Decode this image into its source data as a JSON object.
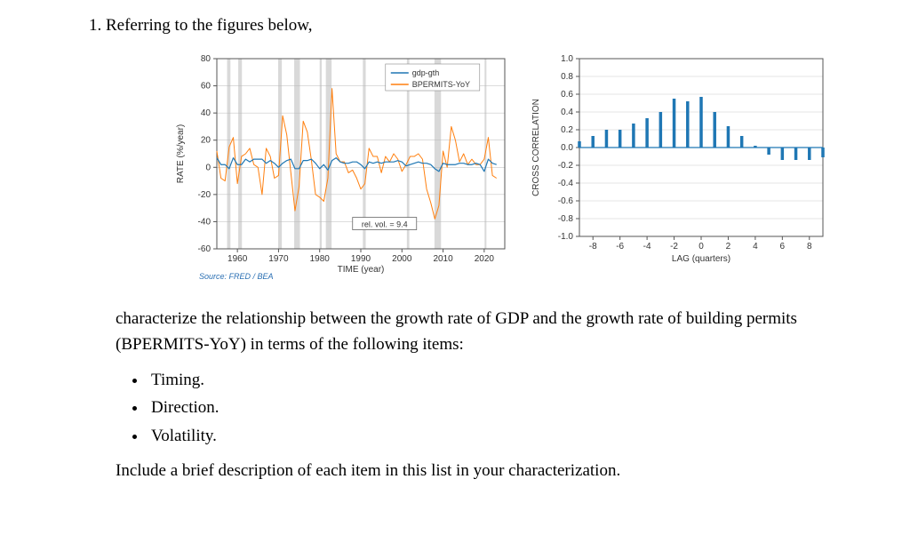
{
  "question_line": "1. Referring to the figures below,",
  "para1": "characterize the relationship between the growth rate of GDP and the growth rate of building permits (BPERMITS-YoY) in terms of the following items:",
  "bullets": [
    "Timing.",
    "Direction.",
    "Volatility."
  ],
  "para2": "Include a brief description of each item in this list in your characterization.",
  "left": {
    "title": "",
    "ylabel": "RATE (%/year)",
    "xlabel": "TIME (year)",
    "source": "Source: FRED / BEA",
    "annot": "rel. vol. = 9.4",
    "legend": [
      "gdp-gth",
      "BPERMITS-YoY"
    ],
    "legend_colors": [
      "#1f77b4",
      "#ff7f0e"
    ],
    "ylim": [
      -60,
      80
    ],
    "yticks": [
      -60,
      -40,
      -20,
      0,
      20,
      40,
      60,
      80
    ],
    "xlim": [
      1955,
      2025
    ],
    "xticks": [
      1960,
      1970,
      1980,
      1990,
      2000,
      2010,
      2020
    ],
    "recessions": [
      [
        1957.5,
        1958.3
      ],
      [
        1960.2,
        1961.1
      ],
      [
        1969.9,
        1970.8
      ],
      [
        1973.8,
        1975.2
      ],
      [
        1980.0,
        1980.5
      ],
      [
        1981.5,
        1982.9
      ],
      [
        1990.5,
        1991.2
      ],
      [
        2001.2,
        2001.8
      ],
      [
        2007.9,
        2009.5
      ],
      [
        2020.1,
        2020.4
      ]
    ],
    "gdp": [
      [
        1955,
        7
      ],
      [
        1956,
        2
      ],
      [
        1957,
        2
      ],
      [
        1958,
        -1
      ],
      [
        1959,
        7
      ],
      [
        1960,
        2
      ],
      [
        1961,
        2
      ],
      [
        1962,
        6
      ],
      [
        1963,
        4
      ],
      [
        1964,
        6
      ],
      [
        1965,
        6
      ],
      [
        1966,
        6
      ],
      [
        1967,
        3
      ],
      [
        1968,
        5
      ],
      [
        1969,
        3
      ],
      [
        1970,
        0
      ],
      [
        1971,
        3
      ],
      [
        1972,
        5
      ],
      [
        1973,
        6
      ],
      [
        1974,
        -1
      ],
      [
        1975,
        -1
      ],
      [
        1976,
        5
      ],
      [
        1977,
        5
      ],
      [
        1978,
        6
      ],
      [
        1979,
        3
      ],
      [
        1980,
        -1
      ],
      [
        1981,
        2
      ],
      [
        1982,
        -2
      ],
      [
        1983,
        5
      ],
      [
        1984,
        7
      ],
      [
        1985,
        4
      ],
      [
        1986,
        3
      ],
      [
        1987,
        3
      ],
      [
        1988,
        4
      ],
      [
        1989,
        4
      ],
      [
        1990,
        2
      ],
      [
        1991,
        -1
      ],
      [
        1992,
        4
      ],
      [
        1993,
        3
      ],
      [
        1994,
        4
      ],
      [
        1995,
        3
      ],
      [
        1996,
        4
      ],
      [
        1997,
        4
      ],
      [
        1998,
        4
      ],
      [
        1999,
        5
      ],
      [
        2000,
        4
      ],
      [
        2001,
        1
      ],
      [
        2002,
        2
      ],
      [
        2003,
        3
      ],
      [
        2004,
        4
      ],
      [
        2005,
        3
      ],
      [
        2006,
        3
      ],
      [
        2007,
        2
      ],
      [
        2008,
        -1
      ],
      [
        2009,
        -3
      ],
      [
        2010,
        3
      ],
      [
        2011,
        2
      ],
      [
        2012,
        2
      ],
      [
        2013,
        2
      ],
      [
        2014,
        3
      ],
      [
        2015,
        3
      ],
      [
        2016,
        2
      ],
      [
        2017,
        2
      ],
      [
        2018,
        3
      ],
      [
        2019,
        2
      ],
      [
        2020,
        -3
      ],
      [
        2021,
        6
      ],
      [
        2022,
        3
      ],
      [
        2023,
        2
      ]
    ],
    "permits": [
      [
        1955,
        12
      ],
      [
        1956,
        -8
      ],
      [
        1957,
        -10
      ],
      [
        1958,
        15
      ],
      [
        1959,
        22
      ],
      [
        1960,
        -12
      ],
      [
        1961,
        8
      ],
      [
        1962,
        10
      ],
      [
        1963,
        14
      ],
      [
        1964,
        2
      ],
      [
        1965,
        0
      ],
      [
        1966,
        -20
      ],
      [
        1967,
        14
      ],
      [
        1968,
        8
      ],
      [
        1969,
        -8
      ],
      [
        1970,
        -6
      ],
      [
        1971,
        38
      ],
      [
        1972,
        24
      ],
      [
        1973,
        -4
      ],
      [
        1974,
        -32
      ],
      [
        1975,
        -14
      ],
      [
        1976,
        34
      ],
      [
        1977,
        26
      ],
      [
        1978,
        5
      ],
      [
        1979,
        -20
      ],
      [
        1980,
        -22
      ],
      [
        1981,
        -25
      ],
      [
        1982,
        -8
      ],
      [
        1983,
        58
      ],
      [
        1984,
        10
      ],
      [
        1985,
        4
      ],
      [
        1986,
        4
      ],
      [
        1987,
        -4
      ],
      [
        1988,
        -2
      ],
      [
        1989,
        -8
      ],
      [
        1990,
        -16
      ],
      [
        1991,
        -12
      ],
      [
        1992,
        14
      ],
      [
        1993,
        8
      ],
      [
        1994,
        8
      ],
      [
        1995,
        -4
      ],
      [
        1996,
        8
      ],
      [
        1997,
        4
      ],
      [
        1998,
        10
      ],
      [
        1999,
        6
      ],
      [
        2000,
        -3
      ],
      [
        2001,
        2
      ],
      [
        2002,
        8
      ],
      [
        2003,
        8
      ],
      [
        2004,
        10
      ],
      [
        2005,
        6
      ],
      [
        2006,
        -16
      ],
      [
        2007,
        -26
      ],
      [
        2008,
        -38
      ],
      [
        2009,
        -28
      ],
      [
        2010,
        12
      ],
      [
        2011,
        0
      ],
      [
        2012,
        30
      ],
      [
        2013,
        20
      ],
      [
        2014,
        4
      ],
      [
        2015,
        10
      ],
      [
        2016,
        2
      ],
      [
        2017,
        6
      ],
      [
        2018,
        2
      ],
      [
        2019,
        2
      ],
      [
        2020,
        6
      ],
      [
        2021,
        22
      ],
      [
        2022,
        -6
      ],
      [
        2023,
        -8
      ]
    ],
    "colors": {
      "gdp": "#1f77b4",
      "permits": "#ff7f0e",
      "grid": "#b9b9b9",
      "frame": "#555",
      "band": "#d9d9d9"
    }
  },
  "right": {
    "ylabel": "CROSS CORRELATION",
    "xlabel": "LAG (quarters)",
    "ylim": [
      -1.0,
      1.0
    ],
    "yticks": [
      -1.0,
      -0.8,
      -0.6,
      -0.4,
      -0.2,
      0.0,
      0.2,
      0.4,
      0.6,
      0.8,
      1.0
    ],
    "xlim": [
      -9,
      9
    ],
    "xticks": [
      -8,
      -6,
      -4,
      -2,
      0,
      2,
      4,
      6,
      8
    ],
    "bars": [
      [
        -9,
        0.07
      ],
      [
        -8,
        0.13
      ],
      [
        -7,
        0.2
      ],
      [
        -6,
        0.2
      ],
      [
        -5,
        0.27
      ],
      [
        -4,
        0.33
      ],
      [
        -3,
        0.4
      ],
      [
        -2,
        0.55
      ],
      [
        -1,
        0.52
      ],
      [
        0,
        0.57
      ],
      [
        1,
        0.4
      ],
      [
        2,
        0.24
      ],
      [
        3,
        0.13
      ],
      [
        4,
        0.02
      ],
      [
        5,
        -0.08
      ],
      [
        6,
        -0.14
      ],
      [
        7,
        -0.14
      ],
      [
        8,
        -0.14
      ],
      [
        9,
        -0.11
      ]
    ],
    "color": "#1f77b4",
    "grid": "#c9c9c9",
    "frame": "#555"
  }
}
